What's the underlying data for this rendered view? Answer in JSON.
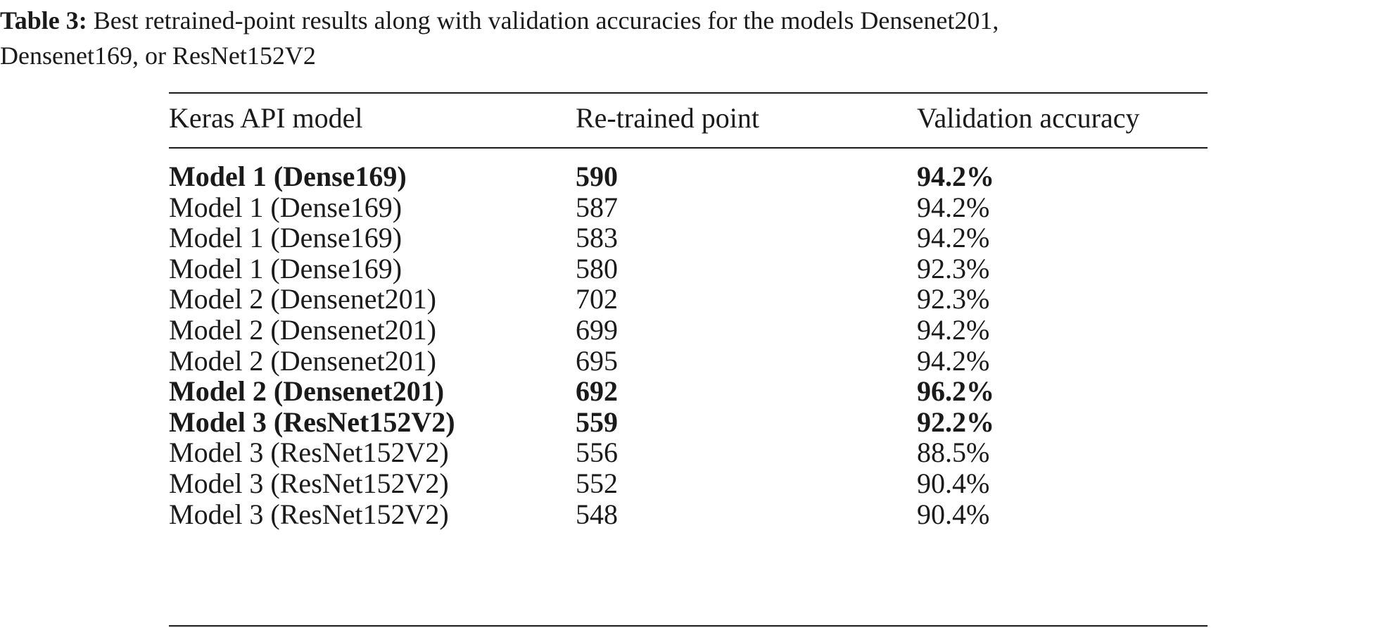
{
  "caption": {
    "label": "Table 3:",
    "line1": " Best retrained-point results along with validation accuracies for the models Densenet201,",
    "line2": "Densenet169, or ResNet152V2"
  },
  "table": {
    "headers": [
      "Keras API model",
      "Re-trained point",
      "Validation accuracy"
    ],
    "rows": [
      {
        "model": "Model 1 (Dense169)",
        "point": "590",
        "accuracy": "94.2%",
        "bold": true
      },
      {
        "model": "Model 1 (Dense169)",
        "point": "587",
        "accuracy": "94.2%",
        "bold": false
      },
      {
        "model": "Model 1 (Dense169)",
        "point": "583",
        "accuracy": "94.2%",
        "bold": false
      },
      {
        "model": "Model 1 (Dense169)",
        "point": "580",
        "accuracy": "92.3%",
        "bold": false
      },
      {
        "model": "Model 2 (Densenet201)",
        "point": "702",
        "accuracy": "92.3%",
        "bold": false
      },
      {
        "model": "Model 2 (Densenet201)",
        "point": "699",
        "accuracy": "94.2%",
        "bold": false
      },
      {
        "model": "Model 2 (Densenet201)",
        "point": "695",
        "accuracy": "94.2%",
        "bold": false
      },
      {
        "model": "Model 2 (Densenet201)",
        "point": "692",
        "accuracy": "96.2%",
        "bold": true
      },
      {
        "model": "Model 3 (ResNet152V2)",
        "point": "559",
        "accuracy": "92.2%",
        "bold": true
      },
      {
        "model": "Model 3 (ResNet152V2)",
        "point": "556",
        "accuracy": "88.5%",
        "bold": false
      },
      {
        "model": "Model 3 (ResNet152V2)",
        "point": "552",
        "accuracy": "90.4%",
        "bold": false
      },
      {
        "model": "Model 3 (ResNet152V2)",
        "point": "548",
        "accuracy": "90.4%",
        "bold": false
      }
    ]
  }
}
